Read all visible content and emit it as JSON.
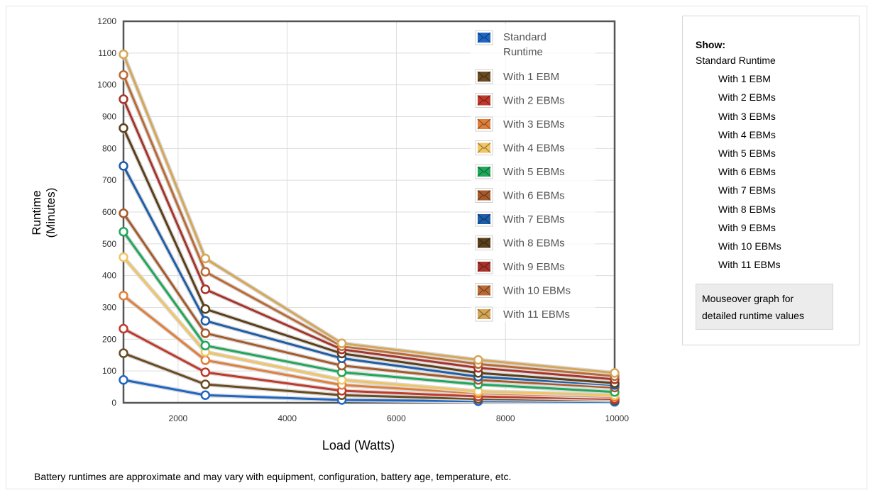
{
  "chart_data": {
    "type": "line",
    "xlabel": "Load (Watts)",
    "ylabel_lines": [
      "Runtime",
      "(Minutes)"
    ],
    "x": [
      1000,
      2500,
      5000,
      7500,
      10000
    ],
    "xlim": [
      1000,
      10000
    ],
    "ylim": [
      0,
      1200
    ],
    "x_ticks": [
      2000,
      4000,
      6000,
      8000,
      10000
    ],
    "y_ticks": [
      0,
      100,
      200,
      300,
      400,
      500,
      600,
      700,
      800,
      900,
      1000,
      1100,
      1200
    ],
    "grid": true,
    "legend_position": "top-right",
    "series": [
      {
        "name": "Standard Runtime",
        "color": "#1f66c4",
        "values": [
          72,
          24,
          9,
          5,
          3
        ]
      },
      {
        "name": "With 1 EBM",
        "color": "#6b4b21",
        "values": [
          156,
          58,
          24,
          12,
          8
        ]
      },
      {
        "name": "With 2 EBMs",
        "color": "#c0392b",
        "values": [
          233,
          96,
          38,
          20,
          12
        ]
      },
      {
        "name": "With 3 EBMs",
        "color": "#e07f3a",
        "values": [
          337,
          134,
          56,
          30,
          19
        ]
      },
      {
        "name": "With 4 EBMs",
        "color": "#f2c462",
        "values": [
          458,
          160,
          72,
          36,
          24
        ]
      },
      {
        "name": "With 5 EBMs",
        "color": "#1ea85a",
        "values": [
          538,
          180,
          96,
          58,
          34
        ]
      },
      {
        "name": "With 6 EBMs",
        "color": "#a65a2a",
        "values": [
          596,
          219,
          117,
          72,
          48
        ]
      },
      {
        "name": "With 7 EBMs",
        "color": "#1d5ea8",
        "values": [
          745,
          258,
          140,
          82,
          56
        ]
      },
      {
        "name": "With 8 EBMs",
        "color": "#5a3f1a",
        "values": [
          864,
          295,
          155,
          94,
          62
        ]
      },
      {
        "name": "With 9 EBMs",
        "color": "#a8332a",
        "values": [
          955,
          357,
          168,
          110,
          74
        ]
      },
      {
        "name": "With 10 EBMs",
        "color": "#bb6a35",
        "values": [
          1031,
          412,
          178,
          122,
          84
        ]
      },
      {
        "name": "With 11 EBMs",
        "color": "#d6a656",
        "values": [
          1096,
          454,
          187,
          135,
          94
        ]
      }
    ]
  },
  "panel": {
    "title": "Show:",
    "items": [
      "Standard Runtime",
      "With 1 EBM",
      "With 2 EBMs",
      "With 3 EBMs",
      "With 4 EBMs",
      "With 5 EBMs",
      "With 6 EBMs",
      "With 7 EBMs",
      "With 8 EBMs",
      "With 9 EBMs",
      "With 10 EBMs",
      "With 11 EBMs"
    ],
    "hint_lines": [
      "Mouseover graph for",
      "detailed runtime values"
    ]
  },
  "footnote": "Battery runtimes are approximate and may vary with equipment, configuration, battery age, temperature, etc."
}
